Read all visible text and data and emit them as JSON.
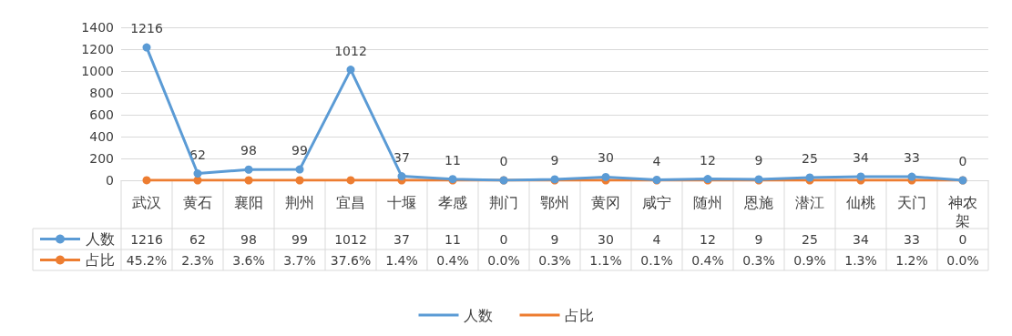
{
  "chart_data": {
    "type": "line",
    "categories": [
      "武汉",
      "黄石",
      "襄阳",
      "荆州",
      "宜昌",
      "十堰",
      "孝感",
      "荆门",
      "鄂州",
      "黄冈",
      "咸宁",
      "随州",
      "恩施",
      "潜江",
      "仙桃",
      "天门",
      "神农架"
    ],
    "series": [
      {
        "name": "人数",
        "color": "#5b9bd5",
        "values": [
          1216,
          62,
          98,
          99,
          1012,
          37,
          11,
          0,
          9,
          30,
          4,
          12,
          9,
          25,
          34,
          33,
          0
        ]
      },
      {
        "name": "占比",
        "color": "#ed7d31",
        "values": [
          0.452,
          0.023,
          0.036,
          0.037,
          0.376,
          0.014,
          0.004,
          0,
          0.003,
          0.011,
          0.001,
          0.004,
          0.003,
          0.009,
          0.013,
          0.012,
          0
        ],
        "value_labels": [
          "45.2%",
          "2.3%",
          "3.6%",
          "3.7%",
          "37.6%",
          "1.4%",
          "0.4%",
          "0.0%",
          "0.3%",
          "1.1%",
          "0.1%",
          "0.4%",
          "0.3%",
          "0.9%",
          "1.3%",
          "1.2%",
          "0.0%"
        ]
      }
    ],
    "ylim": [
      0,
      1400
    ],
    "yticks": [
      0,
      200,
      400,
      600,
      800,
      1000,
      1200,
      1400
    ],
    "grid": "y",
    "legend": "bottom",
    "marker": "circle",
    "line_style": "solid",
    "data_labels": true,
    "annotations": [
      {
        "text": "1216",
        "x": "武汉",
        "y": 1216
      },
      {
        "text": "62",
        "x": "黄石",
        "y": 62
      },
      {
        "text": "98",
        "x": "襄阳",
        "y": 98
      },
      {
        "text": "99",
        "x": "荆州",
        "y": 99
      },
      {
        "text": "1012",
        "x": "宜昌",
        "y": 1012
      },
      {
        "text": "37",
        "x": "十堰",
        "y": 37
      },
      {
        "text": "11",
        "x": "孝感",
        "y": 11
      },
      {
        "text": "0",
        "x": "荆门",
        "y": 0
      },
      {
        "text": "9",
        "x": "鄂州",
        "y": 9
      },
      {
        "text": "30",
        "x": "黄冈",
        "y": 30
      },
      {
        "text": "4",
        "x": "咸宁",
        "y": 4
      },
      {
        "text": "12",
        "x": "随州",
        "y": 12
      },
      {
        "text": "9",
        "x": "恩施",
        "y": 9
      },
      {
        "text": "25",
        "x": "潜江",
        "y": 25
      },
      {
        "text": "34",
        "x": "仙桃",
        "y": 34
      },
      {
        "text": "33",
        "x": "天门",
        "y": 33
      },
      {
        "text": "0",
        "x": "神农架",
        "y": 0
      }
    ]
  }
}
